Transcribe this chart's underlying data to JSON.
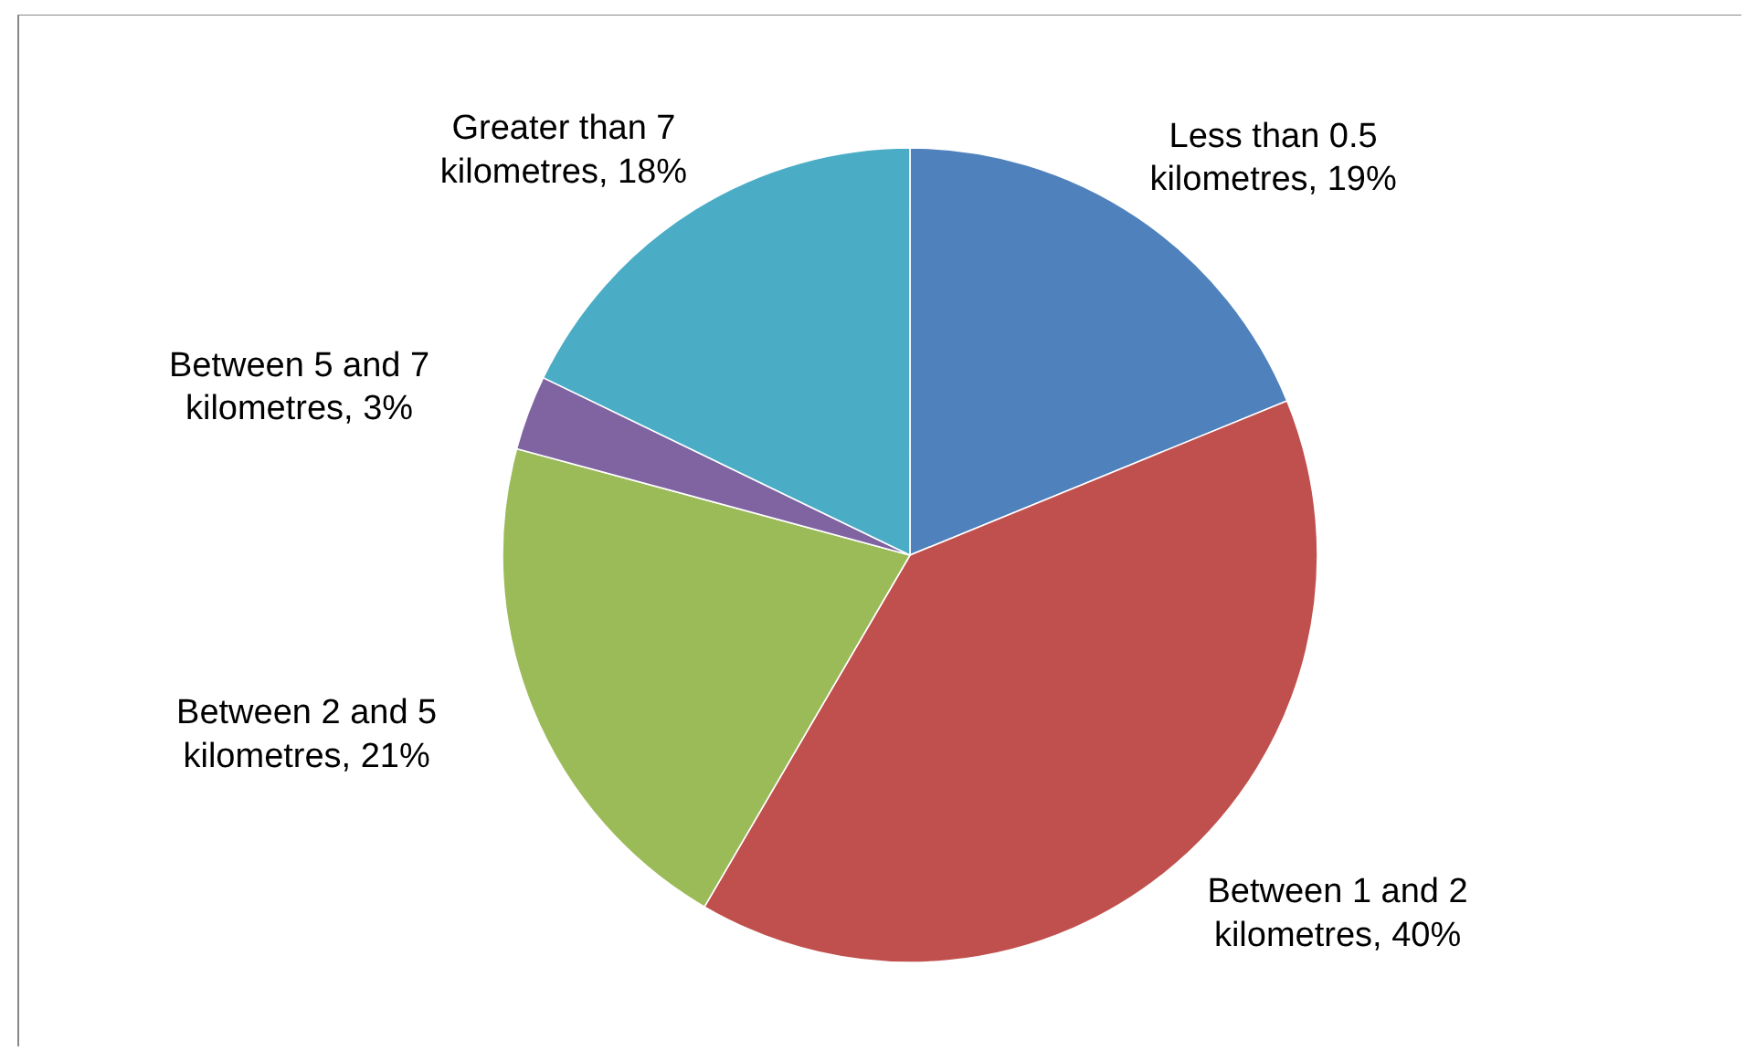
{
  "chart_data": {
    "type": "pie",
    "categories": [
      "Less than 0.5 kilometres",
      "Between 1 and 2 kilometres",
      "Between 2 and 5 kilometres",
      "Between 5 and 7 kilometres",
      "Greater than 7 kilometres"
    ],
    "values": [
      19,
      40,
      21,
      3,
      18
    ],
    "value_labels": [
      "19%",
      "40%",
      "21%",
      "3%",
      "18%"
    ],
    "colors": [
      "#4f81bd",
      "#c0504d",
      "#9bbb59",
      "#8064a2",
      "#4bacc6"
    ]
  }
}
